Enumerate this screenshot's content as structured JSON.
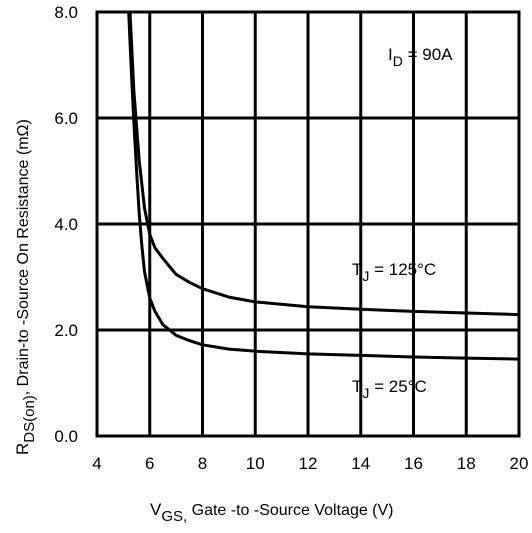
{
  "chart_data": {
    "type": "line",
    "title": "",
    "xlabel": {
      "main": "V",
      "sub": "GS,",
      "rest": " Gate -to -Source Voltage  (V)"
    },
    "ylabel": {
      "main": "R",
      "sub": "DS(on)",
      "rest": ",  Drain-to -Source On Resistance (mΩ)"
    },
    "xlim": [
      4,
      20
    ],
    "ylim": [
      0.0,
      8.0
    ],
    "xticks": [
      "4",
      "6",
      "8",
      "10",
      "12",
      "14",
      "16",
      "18",
      "20"
    ],
    "yticks": [
      "0.0",
      "2.0",
      "4.0",
      "6.0",
      "8.0"
    ],
    "grid": true,
    "annotations": [
      {
        "id": "id-note",
        "main": "I",
        "sub": "D",
        "rest": " = 90A"
      },
      {
        "id": "tj125-note",
        "main": "T",
        "sub": "J",
        "rest": " = 125°C"
      },
      {
        "id": "tj25-note",
        "main": "T",
        "sub": "J",
        "rest": " = 25°C"
      }
    ],
    "series": [
      {
        "label_ref": "tj125-note",
        "x": [
          5.25,
          5.4,
          5.6,
          5.8,
          6.0,
          6.2,
          6.5,
          7.0,
          7.5,
          8.0,
          9.0,
          10.0,
          12.0,
          14.0,
          16.0,
          18.0,
          20.0
        ],
        "y": [
          8.0,
          6.5,
          5.2,
          4.3,
          3.8,
          3.55,
          3.35,
          3.05,
          2.9,
          2.78,
          2.62,
          2.53,
          2.44,
          2.39,
          2.35,
          2.32,
          2.29
        ]
      },
      {
        "label_ref": "tj25-note",
        "x": [
          5.2,
          5.3,
          5.4,
          5.5,
          5.6,
          5.7,
          5.8,
          6.0,
          6.2,
          6.5,
          7.0,
          7.5,
          8.0,
          9.0,
          10.0,
          12.0,
          14.0,
          16.0,
          18.0,
          20.0
        ],
        "y": [
          8.0,
          6.9,
          5.9,
          5.0,
          4.2,
          3.6,
          3.1,
          2.6,
          2.35,
          2.1,
          1.9,
          1.8,
          1.72,
          1.64,
          1.6,
          1.55,
          1.52,
          1.49,
          1.47,
          1.45
        ]
      }
    ]
  }
}
